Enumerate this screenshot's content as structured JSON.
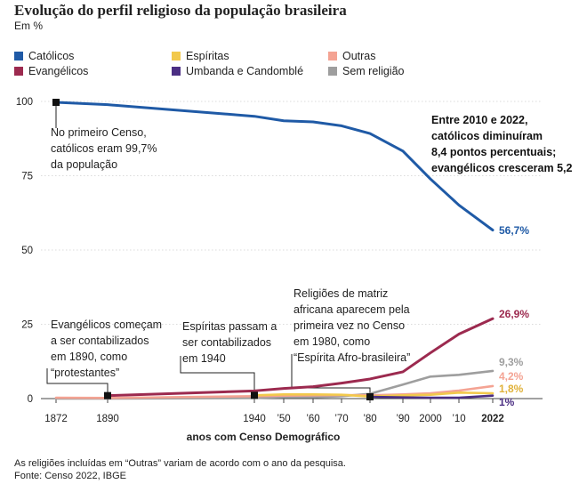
{
  "header": {
    "title": "Evolução do perfil religioso da população brasileira",
    "unit": "Em %"
  },
  "legend": [
    {
      "name": "Católicos",
      "color": "#1f5aa6"
    },
    {
      "name": "Espíritas",
      "color": "#f2c94c"
    },
    {
      "name": "Outras",
      "color": "#f4a393"
    },
    {
      "name": "Evangélicos",
      "color": "#9c2a4f"
    },
    {
      "name": "Umbanda e Candomblé",
      "color": "#4b2e83"
    },
    {
      "name": "Sem religião",
      "color": "#9e9e9e"
    }
  ],
  "annotations": {
    "catholic_start": [
      "No primeiro Censo,",
      "católicos eram 99,7%",
      "da população"
    ],
    "summary": [
      "Entre 2010 e 2022,",
      "católicos diminuíram",
      "8,4 pontos percentuais;",
      "evangélicos cresceram 5,2"
    ],
    "evangelicos": [
      "Evangélicos começam",
      "a ser contabilizados",
      "em 1890, como",
      "“protestantes”"
    ],
    "espiritas": [
      "Espíritas passam a",
      "ser contabilizados",
      "em 1940"
    ],
    "matriz_africana": [
      "Religiões de matriz",
      "africana aparecem pela",
      "primeira vez no Censo",
      "em 1980, como",
      "“Espírita Afro-brasileira”"
    ]
  },
  "end_labels": {
    "catolicos": "56,7%",
    "evangelicos": "26,9%",
    "sem_religiao": "9,3%",
    "outras": "4,2%",
    "espiritas": "1,8%",
    "umbanda": "1%"
  },
  "footnote": {
    "line1": "As religiões incluídas em “Outras” variam de acordo com o ano da pesquisa.",
    "line2": "Fonte: Censo 2022, IBGE"
  },
  "chart_data": {
    "type": "line",
    "xlabel": "anos com Censo Demográfico",
    "ylabel": "",
    "ylim": [
      0,
      100
    ],
    "yticks": [
      0,
      25,
      50,
      75,
      100
    ],
    "grid": true,
    "legend_position": "top",
    "x_ticks": [
      {
        "x": 1872,
        "label": "1872"
      },
      {
        "x": 1890,
        "label": "1890"
      },
      {
        "x": 1940,
        "label": "1940"
      },
      {
        "x": 1950,
        "label": "’50"
      },
      {
        "x": 1960,
        "label": "’60"
      },
      {
        "x": 1970,
        "label": "’70"
      },
      {
        "x": 1980,
        "label": "’80"
      },
      {
        "x": 1991,
        "label": "’90"
      },
      {
        "x": 2000,
        "label": "2000"
      },
      {
        "x": 2010,
        "label": "’10"
      },
      {
        "x": 2022,
        "label": "2022"
      }
    ],
    "series": [
      {
        "name": "Católicos",
        "color": "#1f5aa6",
        "points": [
          [
            1872,
            99.7
          ],
          [
            1890,
            98.9
          ],
          [
            1940,
            95.0
          ],
          [
            1950,
            93.5
          ],
          [
            1960,
            93.1
          ],
          [
            1970,
            91.8
          ],
          [
            1980,
            89.2
          ],
          [
            1991,
            83.3
          ],
          [
            2000,
            73.9
          ],
          [
            2010,
            65.1
          ],
          [
            2022,
            56.7
          ]
        ]
      },
      {
        "name": "Evangélicos",
        "color": "#9c2a4f",
        "points": [
          [
            1890,
            1.0
          ],
          [
            1940,
            2.6
          ],
          [
            1950,
            3.4
          ],
          [
            1960,
            4.0
          ],
          [
            1970,
            5.2
          ],
          [
            1980,
            6.6
          ],
          [
            1991,
            9.0
          ],
          [
            2000,
            15.4
          ],
          [
            2010,
            21.7
          ],
          [
            2022,
            26.9
          ]
        ]
      },
      {
        "name": "Sem religião",
        "color": "#9e9e9e",
        "points": [
          [
            1872,
            0.0
          ],
          [
            1890,
            0.0
          ],
          [
            1940,
            0.2
          ],
          [
            1950,
            0.5
          ],
          [
            1960,
            0.5
          ],
          [
            1970,
            0.8
          ],
          [
            1980,
            1.6
          ],
          [
            1991,
            4.7
          ],
          [
            2000,
            7.4
          ],
          [
            2010,
            8.0
          ],
          [
            2022,
            9.3
          ]
        ]
      },
      {
        "name": "Outras",
        "color": "#f4a393",
        "points": [
          [
            1872,
            0.3
          ],
          [
            1890,
            0.2
          ],
          [
            1940,
            0.8
          ],
          [
            1950,
            1.0
          ],
          [
            1960,
            1.1
          ],
          [
            1970,
            1.2
          ],
          [
            1980,
            1.1
          ],
          [
            1991,
            1.4
          ],
          [
            2000,
            1.8
          ],
          [
            2010,
            2.7
          ],
          [
            2022,
            4.2
          ]
        ]
      },
      {
        "name": "Espíritas",
        "color": "#f2c94c",
        "points": [
          [
            1940,
            1.1
          ],
          [
            1950,
            1.4
          ],
          [
            1960,
            1.4
          ],
          [
            1970,
            1.3
          ],
          [
            1980,
            0.7
          ],
          [
            1991,
            1.1
          ],
          [
            2000,
            1.3
          ],
          [
            2010,
            2.0
          ],
          [
            2022,
            1.8
          ]
        ]
      },
      {
        "name": "Umbanda e Candomblé",
        "color": "#4b2e83",
        "points": [
          [
            1980,
            0.6
          ],
          [
            1991,
            0.4
          ],
          [
            2000,
            0.3
          ],
          [
            2010,
            0.3
          ],
          [
            2022,
            1.0
          ]
        ]
      }
    ],
    "markers": [
      [
        1872,
        99.7
      ],
      [
        1890,
        1.0
      ],
      [
        1940,
        1.1
      ],
      [
        1980,
        0.6
      ]
    ]
  }
}
